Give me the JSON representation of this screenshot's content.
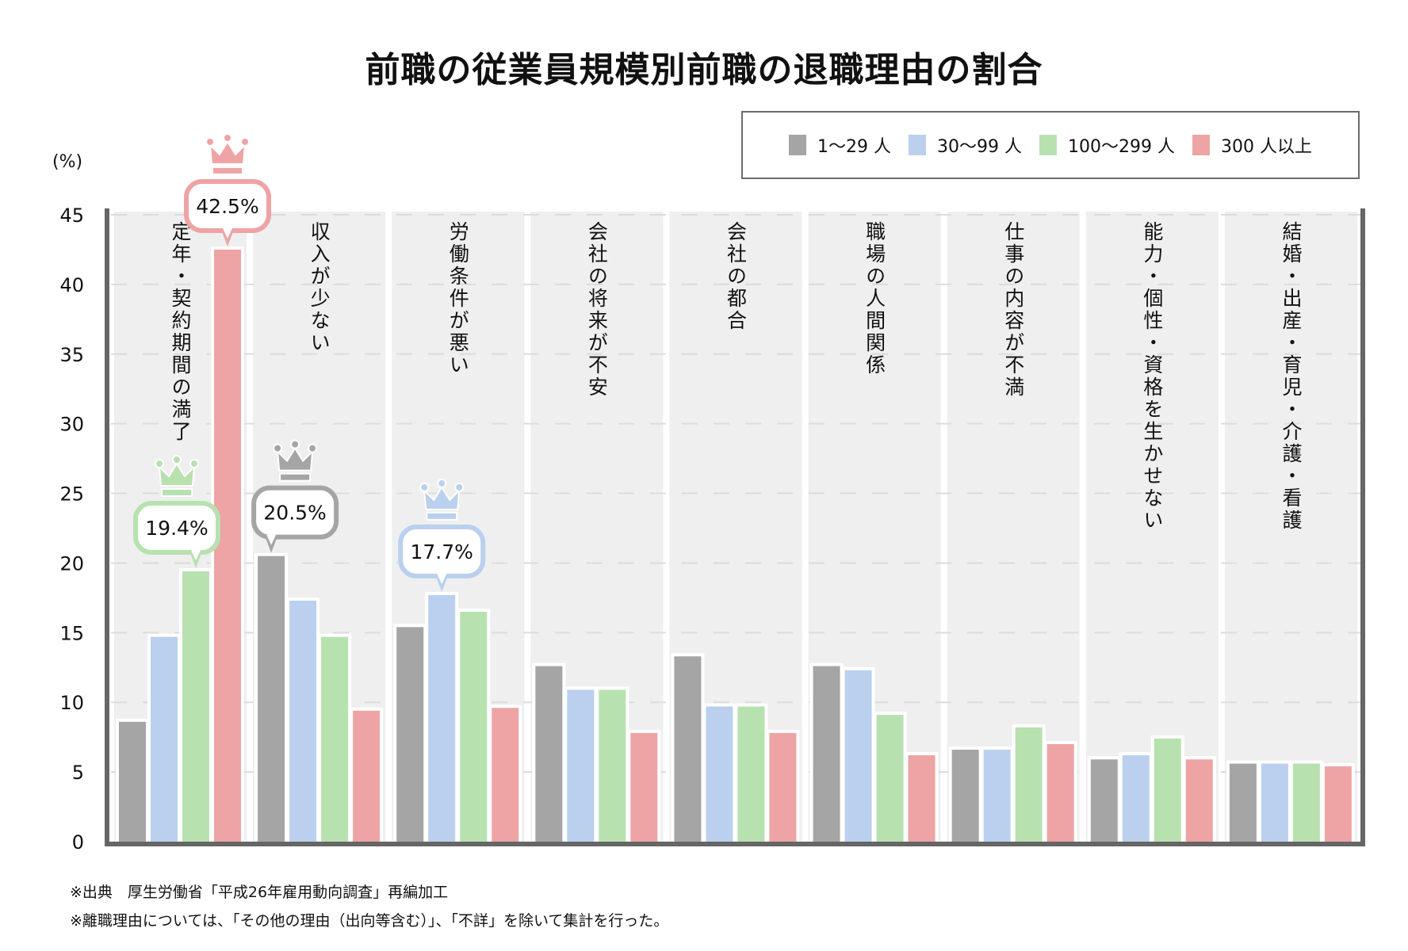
{
  "title": "前職の従業員規模別前職の退職理由の割合",
  "unit_label": "(%)",
  "legend": [
    {
      "label": "1〜29 人",
      "color": "#a5a5a5"
    },
    {
      "label": "30〜99 人",
      "color": "#bad0ee"
    },
    {
      "label": "100〜299 人",
      "color": "#b8e1b0"
    },
    {
      "label": "300 人以上",
      "color": "#eea4a4"
    }
  ],
  "footer": [
    "※出典　厚生労働省「平成26年雇用動向調査」再編加工",
    "※離職理由については、「その他の理由（出向等含む）」、「不詳」を除いて集計を行った。"
  ],
  "chart_data": {
    "type": "bar",
    "title": "前職の従業員規模別前職の退職理由の割合",
    "xlabel": "",
    "ylabel": "(%)",
    "ylim": [
      0,
      45
    ],
    "yticks": [
      0,
      5,
      10,
      15,
      20,
      25,
      30,
      35,
      40,
      45
    ],
    "grid": true,
    "legend_position": "top-right",
    "categories": [
      "定年・契約期間の満了",
      "収入が少ない",
      "労働条件が悪い",
      "会社の将来が不安",
      "会社の都合",
      "職場の人間関係",
      "仕事の内容が不満",
      "能力・個性・資格を生かせない",
      "結婚・出産・育児・介護・看護"
    ],
    "series": [
      {
        "name": "1〜29 人",
        "color": "#a5a5a5",
        "values": [
          8.6,
          20.5,
          15.4,
          12.6,
          13.3,
          12.6,
          6.6,
          5.9,
          5.6
        ]
      },
      {
        "name": "30〜99 人",
        "color": "#bad0ee",
        "values": [
          14.7,
          17.3,
          17.7,
          10.9,
          9.7,
          12.3,
          6.6,
          6.2,
          5.6
        ]
      },
      {
        "name": "100〜299 人",
        "color": "#b8e1b0",
        "values": [
          19.4,
          14.7,
          16.5,
          10.9,
          9.7,
          9.1,
          8.2,
          7.4,
          5.6
        ]
      },
      {
        "name": "300 人以上",
        "color": "#eea4a4",
        "values": [
          42.5,
          9.4,
          9.6,
          7.8,
          7.8,
          6.2,
          7.0,
          5.9,
          5.4
        ]
      }
    ],
    "annotations": [
      {
        "category_index": 0,
        "series_index": 3,
        "label": "42.5%"
      },
      {
        "category_index": 0,
        "series_index": 2,
        "label": "19.4%"
      },
      {
        "category_index": 1,
        "series_index": 0,
        "label": "20.5%"
      },
      {
        "category_index": 2,
        "series_index": 1,
        "label": "17.7%"
      }
    ]
  }
}
